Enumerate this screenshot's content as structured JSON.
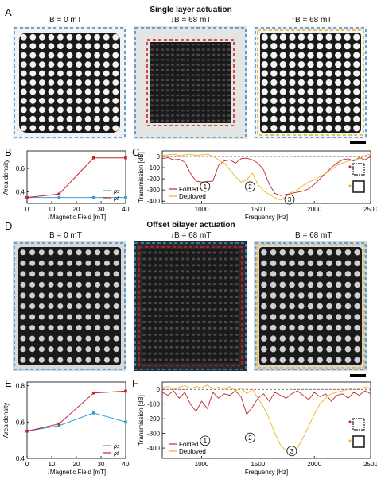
{
  "panel_labels": {
    "A": "A",
    "B": "B",
    "C": "C",
    "D": "D",
    "E": "E",
    "F": "F"
  },
  "section1": {
    "title": "Single layer actuation",
    "photo_captions": [
      {
        "arrow": "",
        "text": "B = 0 mT"
      },
      {
        "arrow": "↓",
        "arrow_color": "#2060c0",
        "text": "B = 68 mT"
      },
      {
        "arrow": "↑",
        "arrow_color": "#d02020",
        "text": "B = 68 mT"
      }
    ]
  },
  "section2": {
    "title": "Offset bilayer actuation",
    "photo_captions": [
      {
        "arrow": "",
        "text": "B = 0 mT"
      },
      {
        "arrow": "↓",
        "arrow_color": "#2060c0",
        "text": "B = 68 mT"
      },
      {
        "arrow": "↑",
        "arrow_color": "#d02020",
        "text": "B = 68 mT"
      }
    ]
  },
  "colors": {
    "blue_series": "#3b9bd6",
    "red_series": "#c0282c",
    "yellow_series": "#f2b31e",
    "frame_blue": "#3a8fd8",
    "frame_red": "#d02020",
    "frame_yellow": "#e8b020"
  },
  "chart_data": [
    {
      "id": "B",
      "type": "line",
      "xlabel": "Magnetic Field [mT]",
      "xlabel_arrow": "↓",
      "ylabel": "Area density",
      "x": [
        0,
        13,
        27,
        40
      ],
      "xlim": [
        0,
        40
      ],
      "ylim": [
        0.3,
        0.75
      ],
      "xticks": [
        "0",
        "10",
        "20",
        "30",
        "40"
      ],
      "yticks": [
        "0.4",
        "0.6"
      ],
      "legend": [
        "ρs",
        "ρt"
      ],
      "series": [
        {
          "name": "ρs",
          "color": "#3b9bd6",
          "values": [
            0.35,
            0.35,
            0.35,
            0.35
          ]
        },
        {
          "name": "ρt",
          "color": "#c0282c",
          "values": [
            0.35,
            0.38,
            0.69,
            0.69
          ]
        }
      ]
    },
    {
      "id": "C",
      "type": "line",
      "xlabel": "Frequency [Hz]",
      "ylabel": "Transmission [dB]",
      "xlim": [
        650,
        2500
      ],
      "ylim": [
        -420,
        50
      ],
      "xticks": [
        "1000",
        "1500",
        "2000",
        "2500"
      ],
      "yticks": [
        "0",
        "-100",
        "-200",
        "-300",
        "-400"
      ],
      "legend": [
        "Folded",
        "Deployed"
      ],
      "annotations": [
        "1",
        "2",
        "3"
      ],
      "series": [
        {
          "name": "Folded",
          "color": "#c0282c",
          "x": [
            650,
            700,
            750,
            800,
            850,
            900,
            950,
            1000,
            1050,
            1100,
            1150,
            1200,
            1250,
            1300,
            1350,
            1400,
            1450,
            1500,
            1550,
            1600,
            1650,
            1700,
            1750,
            1800,
            1850,
            1900,
            1950,
            2000,
            2050,
            2100,
            2150,
            2200,
            2250,
            2300,
            2350,
            2400,
            2450,
            2500
          ],
          "values": [
            -20,
            -10,
            -30,
            -25,
            -50,
            -150,
            -220,
            -230,
            -225,
            -220,
            -80,
            -40,
            -30,
            -60,
            -20,
            -15,
            -30,
            -60,
            -120,
            -250,
            -330,
            -350,
            -340,
            -330,
            -320,
            -310,
            -290,
            -250,
            -200,
            -150,
            -100,
            -60,
            -30,
            -20,
            -40,
            -10,
            -30,
            0
          ]
        },
        {
          "name": "Deployed",
          "color": "#f2b31e",
          "x": [
            650,
            700,
            750,
            800,
            850,
            900,
            950,
            1000,
            1050,
            1100,
            1150,
            1200,
            1250,
            1300,
            1350,
            1400,
            1450,
            1500,
            1550,
            1600,
            1650,
            1700,
            1750,
            1800,
            1850,
            1900,
            1950,
            2000,
            2050,
            2100,
            2150,
            2200,
            2250,
            2300,
            2350,
            2400,
            2450,
            2500
          ],
          "values": [
            10,
            15,
            20,
            10,
            15,
            20,
            10,
            15,
            20,
            5,
            -30,
            -60,
            -120,
            -180,
            -230,
            -210,
            -150,
            -250,
            -310,
            -340,
            -370,
            -390,
            -360,
            -320,
            -300,
            -260,
            -230,
            -210,
            -180,
            -150,
            -120,
            -80,
            -60,
            -40,
            -30,
            -20,
            10,
            20
          ]
        }
      ]
    },
    {
      "id": "E",
      "type": "line",
      "xlabel": "Magnetic Field [mT]",
      "xlabel_arrow": "↓",
      "ylabel": "Area density",
      "x": [
        0,
        13,
        27,
        40
      ],
      "xlim": [
        0,
        40
      ],
      "ylim": [
        0.4,
        0.82
      ],
      "xticks": [
        "0",
        "10",
        "20",
        "30",
        "40"
      ],
      "yticks": [
        "0.4",
        "0.6",
        "0.8"
      ],
      "legend": [
        "ρs",
        "ρt"
      ],
      "series": [
        {
          "name": "ρs",
          "color": "#3b9bd6",
          "values": [
            0.55,
            0.58,
            0.65,
            0.6
          ]
        },
        {
          "name": "ρt",
          "color": "#c0282c",
          "values": [
            0.55,
            0.59,
            0.76,
            0.77
          ]
        }
      ]
    },
    {
      "id": "F",
      "type": "line",
      "xlabel": "Frequency [Hz]",
      "ylabel": "Transmission [dB]",
      "xlim": [
        650,
        2500
      ],
      "ylim": [
        -470,
        50
      ],
      "xticks": [
        "1000",
        "1500",
        "2000",
        "2500"
      ],
      "yticks": [
        "0",
        "-100",
        "-200",
        "-300",
        "-400"
      ],
      "legend": [
        "Folded",
        "Deployed"
      ],
      "annotations": [
        "1",
        "2",
        "3"
      ],
      "series": [
        {
          "name": "Folded",
          "color": "#c0282c",
          "x": [
            650,
            700,
            750,
            800,
            850,
            900,
            950,
            1000,
            1050,
            1100,
            1150,
            1200,
            1250,
            1300,
            1350,
            1400,
            1450,
            1500,
            1550,
            1600,
            1650,
            1700,
            1750,
            1800,
            1850,
            1900,
            1950,
            2000,
            2050,
            2100,
            2150,
            2200,
            2250,
            2300,
            2350,
            2400,
            2450,
            2500
          ],
          "values": [
            -20,
            -40,
            -10,
            -60,
            -20,
            -100,
            -150,
            -80,
            -130,
            -20,
            -60,
            -30,
            -40,
            -10,
            -50,
            -170,
            -120,
            -60,
            -30,
            -80,
            -20,
            -40,
            -60,
            -30,
            -10,
            -40,
            -70,
            -20,
            -50,
            -30,
            -80,
            -40,
            -30,
            -60,
            -20,
            -40,
            -10,
            -30
          ]
        },
        {
          "name": "Deployed",
          "color": "#f2b31e",
          "x": [
            650,
            700,
            750,
            800,
            850,
            900,
            950,
            1000,
            1050,
            1100,
            1150,
            1200,
            1250,
            1300,
            1350,
            1400,
            1450,
            1500,
            1550,
            1600,
            1650,
            1700,
            1750,
            1800,
            1850,
            1900,
            1950,
            2000,
            2050,
            2100,
            2150,
            2200,
            2250,
            2300,
            2350,
            2400,
            2450,
            2500
          ],
          "values": [
            10,
            20,
            0,
            15,
            25,
            5,
            20,
            10,
            30,
            5,
            15,
            0,
            20,
            -10,
            10,
            -30,
            0,
            -60,
            -120,
            -200,
            -300,
            -380,
            -420,
            -440,
            -400,
            -330,
            -250,
            -170,
            -100,
            -60,
            -30,
            -20,
            -10,
            0,
            10,
            5,
            15,
            10
          ]
        }
      ]
    }
  ]
}
